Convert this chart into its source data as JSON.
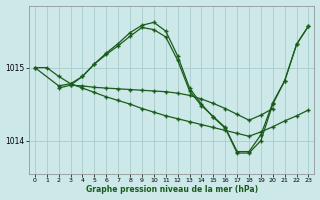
{
  "bg_color": "#cce8e8",
  "grid_color": "#aacccc",
  "line_color": "#1a5c1a",
  "xlabel": "Graphe pression niveau de la mer (hPa)",
  "xlim": [
    -0.5,
    23.5
  ],
  "ylim": [
    1013.55,
    1015.85
  ],
  "yticks": [
    1014,
    1015
  ],
  "xticks": [
    0,
    1,
    2,
    3,
    4,
    5,
    6,
    7,
    8,
    9,
    10,
    11,
    12,
    13,
    14,
    15,
    16,
    17,
    18,
    19,
    20,
    21,
    22,
    23
  ],
  "line1_x": [
    0,
    1,
    2,
    3,
    4,
    5,
    6,
    7,
    8,
    9,
    10,
    11,
    12,
    13,
    14,
    15,
    16,
    17,
    18,
    19,
    20,
    21,
    22,
    23
  ],
  "line1_y": [
    1015.0,
    1015.0,
    1014.88,
    1014.78,
    1014.72,
    1014.66,
    1014.6,
    1014.55,
    1014.5,
    1014.44,
    1014.39,
    1014.34,
    1014.3,
    1014.26,
    1014.22,
    1014.18,
    1014.14,
    1014.1,
    1014.06,
    1014.12,
    1014.19,
    1014.27,
    1014.34,
    1014.42
  ],
  "line2_x": [
    0,
    2,
    3,
    4,
    5,
    6,
    7,
    8,
    9,
    10,
    11,
    12,
    13,
    14,
    15,
    16,
    17,
    18,
    19,
    20,
    21,
    22,
    23
  ],
  "line2_y": [
    1015.0,
    1014.75,
    1014.78,
    1014.88,
    1015.05,
    1015.18,
    1015.3,
    1015.43,
    1015.55,
    1015.52,
    1015.42,
    1015.1,
    1014.68,
    1014.48,
    1014.33,
    1014.18,
    1013.85,
    1013.85,
    1014.08,
    1014.52,
    1014.82,
    1015.32,
    1015.57
  ],
  "line3_x": [
    2,
    3,
    4,
    5,
    6,
    7,
    8,
    9,
    10,
    11,
    12,
    13,
    14,
    15,
    16,
    17,
    18,
    19,
    20,
    21,
    22,
    23
  ],
  "line3_y": [
    1014.72,
    1014.76,
    1014.88,
    1015.05,
    1015.2,
    1015.33,
    1015.48,
    1015.58,
    1015.62,
    1015.5,
    1015.16,
    1014.72,
    1014.5,
    1014.32,
    1014.17,
    1013.83,
    1013.83,
    1014.0,
    1014.5,
    1014.82,
    1015.32,
    1015.57
  ],
  "line4_x": [
    3,
    4,
    5,
    6,
    7,
    8,
    9,
    10,
    11,
    12,
    13,
    14,
    15,
    16,
    17,
    18,
    19,
    20
  ],
  "line4_y": [
    1014.76,
    1014.75,
    1014.73,
    1014.72,
    1014.71,
    1014.7,
    1014.69,
    1014.68,
    1014.67,
    1014.65,
    1014.62,
    1014.57,
    1014.51,
    1014.44,
    1014.36,
    1014.28,
    1014.35,
    1014.44
  ]
}
